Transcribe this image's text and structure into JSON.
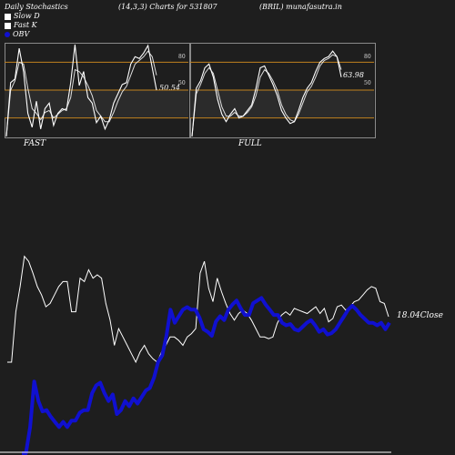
{
  "header": {
    "left": "Daily Stochastics",
    "center": "(14,3,3) Charts for 531807",
    "right": "(BRIL) munafasutra.in"
  },
  "legend": {
    "items": [
      {
        "label": "Slow  D",
        "color": "#ffffff"
      },
      {
        "label": "Fast K",
        "color": "#ffffff"
      },
      {
        "label": "OBV",
        "color": "#1010d0"
      }
    ]
  },
  "colors": {
    "background": "#1e1e1e",
    "level_line": "#c0821e",
    "white_line": "#ffffff",
    "obv_line": "#1010d0"
  },
  "chart_data": [
    {
      "type": "line",
      "title": "FAST",
      "ylim": [
        0,
        100
      ],
      "levels": [
        20,
        50,
        80
      ],
      "last_value_label": "50.54",
      "series": [
        {
          "name": "Fast K",
          "values": [
            0,
            58,
            62,
            95,
            70,
            25,
            10,
            38,
            8,
            30,
            36,
            12,
            25,
            30,
            28,
            58,
            99,
            55,
            70,
            42,
            36,
            15,
            22,
            8,
            18,
            36,
            46,
            56,
            58,
            78,
            86,
            84,
            90,
            98,
            74,
            50
          ]
        },
        {
          "name": "Slow  D",
          "values": [
            0,
            50,
            60,
            80,
            78,
            52,
            30,
            25,
            18,
            26,
            28,
            20,
            24,
            28,
            30,
            42,
            72,
            70,
            64,
            55,
            44,
            28,
            22,
            16,
            16,
            26,
            38,
            48,
            54,
            66,
            78,
            82,
            86,
            92,
            86,
            66
          ]
        }
      ]
    },
    {
      "type": "line",
      "title": "FULL",
      "ylim": [
        0,
        100
      ],
      "levels": [
        20,
        50,
        80
      ],
      "last_value_label": "63.98",
      "series": [
        {
          "name": "Fast K",
          "values": [
            0,
            52,
            60,
            74,
            78,
            64,
            40,
            24,
            16,
            24,
            30,
            20,
            22,
            28,
            34,
            52,
            74,
            76,
            66,
            56,
            44,
            28,
            20,
            14,
            16,
            28,
            42,
            52,
            58,
            70,
            80,
            84,
            86,
            92,
            86,
            64
          ]
        },
        {
          "name": "Slow  D",
          "values": [
            0,
            46,
            56,
            68,
            74,
            68,
            50,
            32,
            22,
            22,
            26,
            22,
            22,
            26,
            32,
            44,
            64,
            72,
            68,
            60,
            50,
            34,
            24,
            18,
            16,
            24,
            36,
            48,
            54,
            64,
            76,
            82,
            84,
            88,
            86,
            72
          ]
        }
      ]
    },
    {
      "type": "line",
      "title": "",
      "last_value_label": "18.04",
      "last_value_suffix": "Close",
      "series": [
        {
          "name": "Close",
          "values": [
            10.0,
            10.0,
            13.0,
            14.5,
            16.3,
            16.0,
            15.3,
            14.5,
            14.0,
            13.3,
            13.5,
            14.0,
            14.5,
            14.8,
            14.8,
            13.0,
            13.0,
            15.0,
            14.8,
            15.5,
            15.0,
            15.2,
            15.0,
            13.5,
            12.5,
            11.0,
            12.0,
            11.5,
            11.0,
            10.5,
            10.0,
            10.6,
            11.0,
            10.5,
            10.2,
            10.0,
            10.6,
            11.0,
            11.5,
            11.5,
            11.3,
            11.0,
            11.5,
            11.7,
            12.0,
            15.3,
            16.0,
            14.4,
            13.6,
            15.0,
            14.2,
            13.5,
            12.9,
            12.5,
            12.9,
            13.1,
            12.9,
            12.5,
            12.0,
            11.5,
            11.5,
            11.4,
            11.5,
            12.3,
            12.8,
            13.0,
            12.8,
            13.2,
            13.1,
            13.0,
            12.9,
            13.1,
            13.3,
            12.9,
            13.2,
            12.4,
            12.6,
            13.3,
            13.4,
            13.1,
            13.3,
            13.6,
            13.7,
            14.0,
            14.3,
            14.5,
            14.4,
            13.6,
            13.5,
            18.04
          ]
        },
        {
          "name": "OBV",
          "values": [
            -3.0,
            -3.0,
            -1.0,
            2.5,
            1.0,
            0.2,
            0.3,
            -0.2,
            -0.6,
            -1.0,
            -0.6,
            -1.0,
            -0.5,
            -0.5,
            0.1,
            0.3,
            0.3,
            1.6,
            2.2,
            2.4,
            1.6,
            1.0,
            1.5,
            0,
            0.3,
            1.0,
            0.6,
            1.2,
            0.8,
            1.3,
            1.8,
            2.0,
            2.8,
            4.0,
            4.5,
            6.0,
            8.0,
            7.0,
            7.5,
            8.0,
            8.2,
            8.0,
            8.0,
            7.4,
            6.5,
            6.3,
            6.0,
            7.1,
            7.5,
            7.2,
            8.0,
            8.4,
            8.7,
            8.1,
            7.6,
            7.6,
            8.5,
            8.7,
            8.9,
            8.4,
            8.0,
            7.6,
            7.6,
            7.0,
            6.8,
            6.9,
            6.5,
            6.4,
            6.7,
            7.0,
            7.2,
            6.8,
            6.3,
            6.5,
            6.1,
            6.2,
            6.5,
            7.0,
            7.5,
            8.0,
            8.3,
            8.0,
            7.6,
            7.3,
            7.0,
            7.0,
            6.8,
            7.0,
            6.5,
            7.0
          ]
        }
      ]
    }
  ],
  "panel_labels": {
    "fast": "FAST",
    "full": "FULL"
  },
  "axis_labels": [
    "80",
    "50",
    "20"
  ]
}
